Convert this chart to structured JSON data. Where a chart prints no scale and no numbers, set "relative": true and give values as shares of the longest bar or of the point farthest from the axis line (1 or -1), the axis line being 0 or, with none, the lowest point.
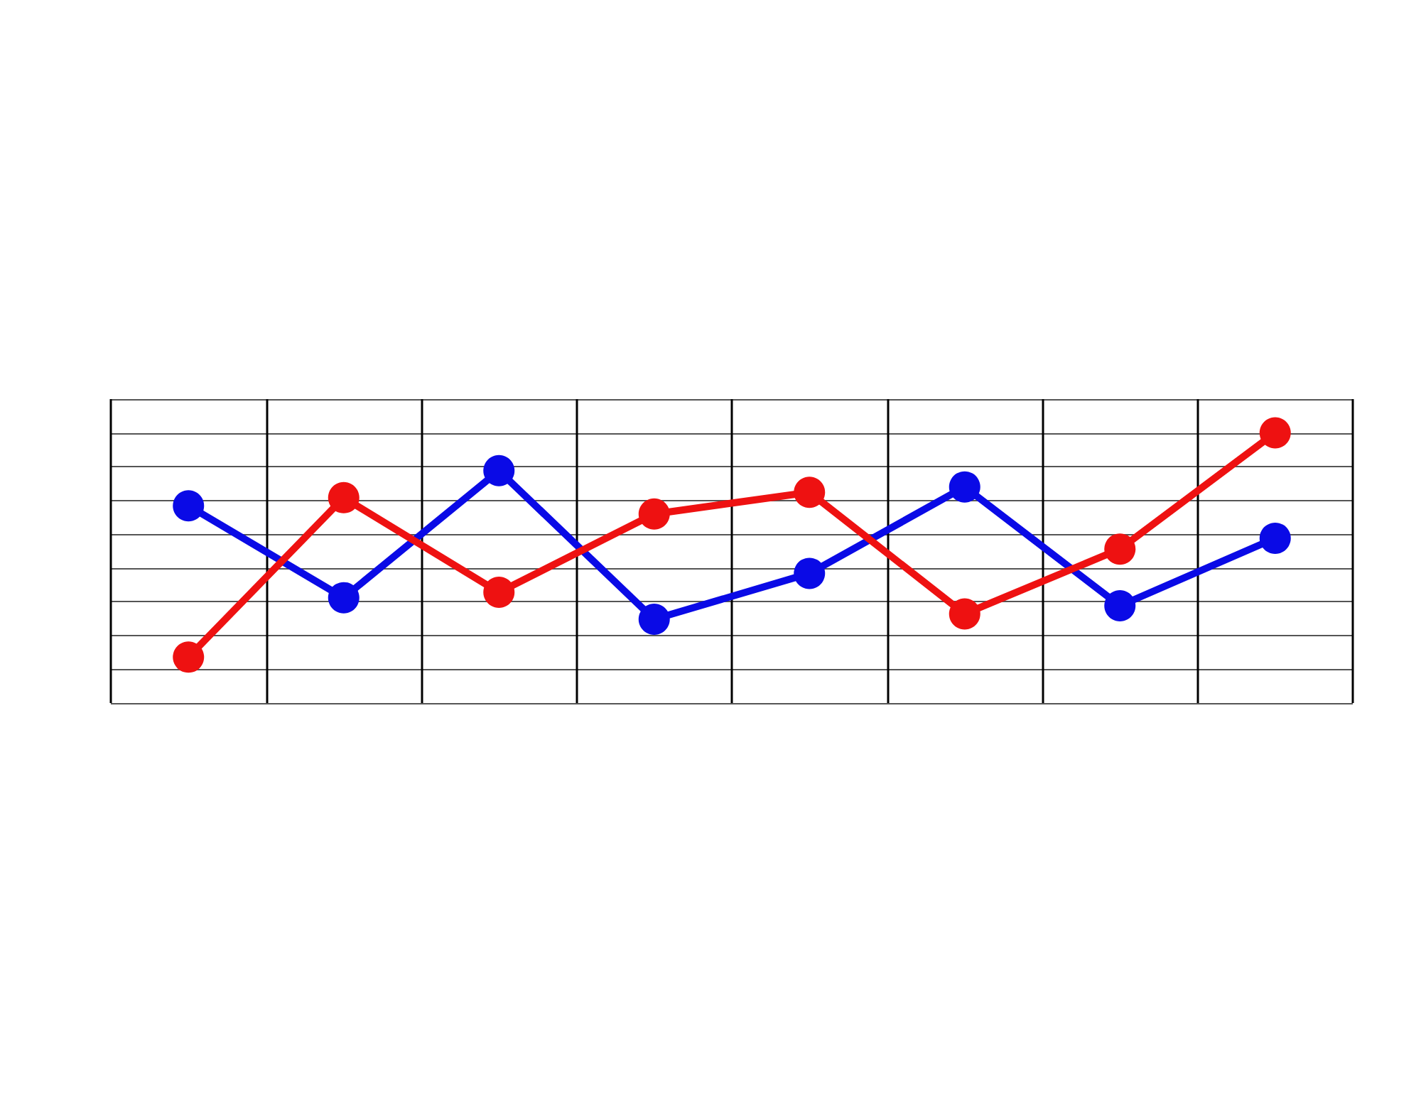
{
  "chart_data": {
    "type": "line",
    "relative": true,
    "categories": [
      null,
      null,
      null,
      null,
      null,
      null,
      null,
      null
    ],
    "series": [
      {
        "color": "#0a0ae6",
        "values": [
          0.73,
          0.39,
          0.86,
          0.31,
          0.48,
          0.8,
          0.36,
          0.61
        ]
      },
      {
        "color": "#ee1111",
        "values": [
          0.17,
          0.76,
          0.41,
          0.7,
          0.78,
          0.33,
          0.57,
          1.0
        ]
      }
    ],
    "marker": "circle",
    "line_style": "solid",
    "grid": true
  }
}
